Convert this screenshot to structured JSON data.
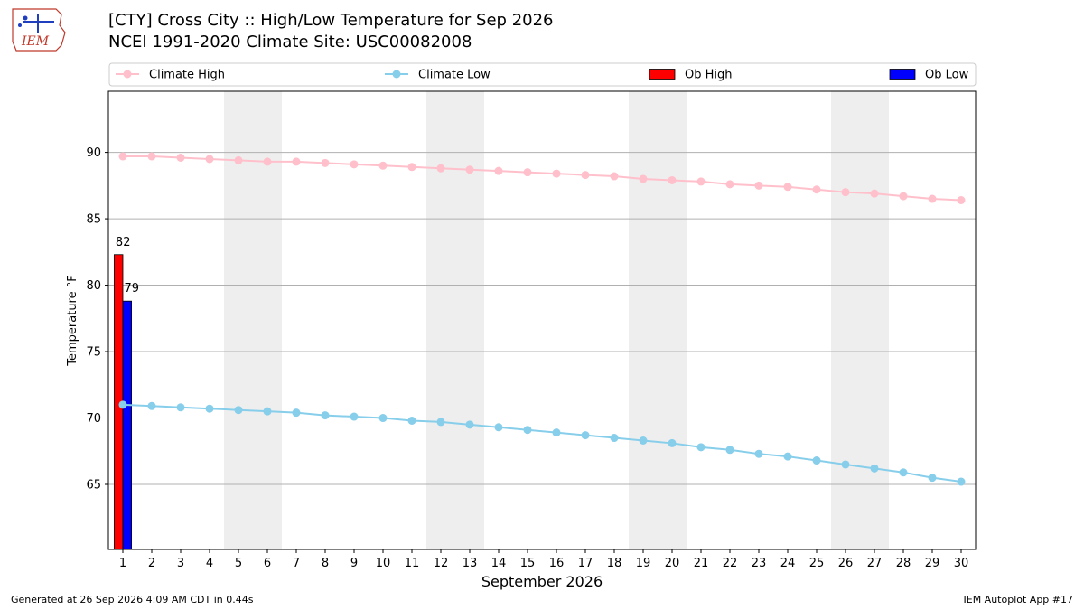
{
  "header": {
    "logo_text": "IEM",
    "title_line1": "[CTY] Cross City :: High/Low Temperature for Sep 2026",
    "title_line2": "NCEI 1991-2020 Climate Site: USC00082008"
  },
  "footer": {
    "generated": "Generated at 26 Sep 2026 4:09 AM CDT in 0.44s",
    "app": "IEM Autoplot App #17"
  },
  "chart_data": {
    "type": "bar",
    "xlabel": "September 2026",
    "ylabel": "Temperature °F",
    "xlim": [
      0.5,
      30.5
    ],
    "ylim": [
      60.1,
      94.6
    ],
    "yticks": [
      65,
      70,
      75,
      80,
      85,
      90
    ],
    "x": [
      1,
      2,
      3,
      4,
      5,
      6,
      7,
      8,
      9,
      10,
      11,
      12,
      13,
      14,
      15,
      16,
      17,
      18,
      19,
      20,
      21,
      22,
      23,
      24,
      25,
      26,
      27,
      28,
      29,
      30
    ],
    "weekend_shading": [
      [
        4.5,
        6.5
      ],
      [
        11.5,
        13.5
      ],
      [
        18.5,
        20.5
      ],
      [
        25.5,
        27.5
      ]
    ],
    "grid": "horizontal",
    "legend_placement": "top",
    "series": [
      {
        "name": "Climate High",
        "kind": "line",
        "color": "#ffc0cb",
        "values": [
          89.7,
          89.7,
          89.6,
          89.5,
          89.4,
          89.3,
          89.3,
          89.2,
          89.1,
          89.0,
          88.9,
          88.8,
          88.7,
          88.6,
          88.5,
          88.4,
          88.3,
          88.2,
          88.0,
          87.9,
          87.8,
          87.6,
          87.5,
          87.4,
          87.2,
          87.0,
          86.9,
          86.7,
          86.5,
          86.4
        ]
      },
      {
        "name": "Climate Low",
        "kind": "line",
        "color": "#87ceeb",
        "values": [
          71.0,
          70.9,
          70.8,
          70.7,
          70.6,
          70.5,
          70.4,
          70.2,
          70.1,
          70.0,
          69.8,
          69.7,
          69.5,
          69.3,
          69.1,
          68.9,
          68.7,
          68.5,
          68.3,
          68.1,
          67.8,
          67.6,
          67.3,
          67.1,
          66.8,
          66.5,
          66.2,
          65.9,
          65.5,
          65.2
        ]
      },
      {
        "name": "Ob High",
        "kind": "bar",
        "color": "#ff0000",
        "x": [
          1
        ],
        "values": [
          82.3
        ],
        "labels": [
          "82"
        ]
      },
      {
        "name": "Ob Low",
        "kind": "bar",
        "color": "#0000ff",
        "x": [
          1
        ],
        "values": [
          78.8
        ],
        "labels": [
          "79"
        ]
      }
    ]
  }
}
